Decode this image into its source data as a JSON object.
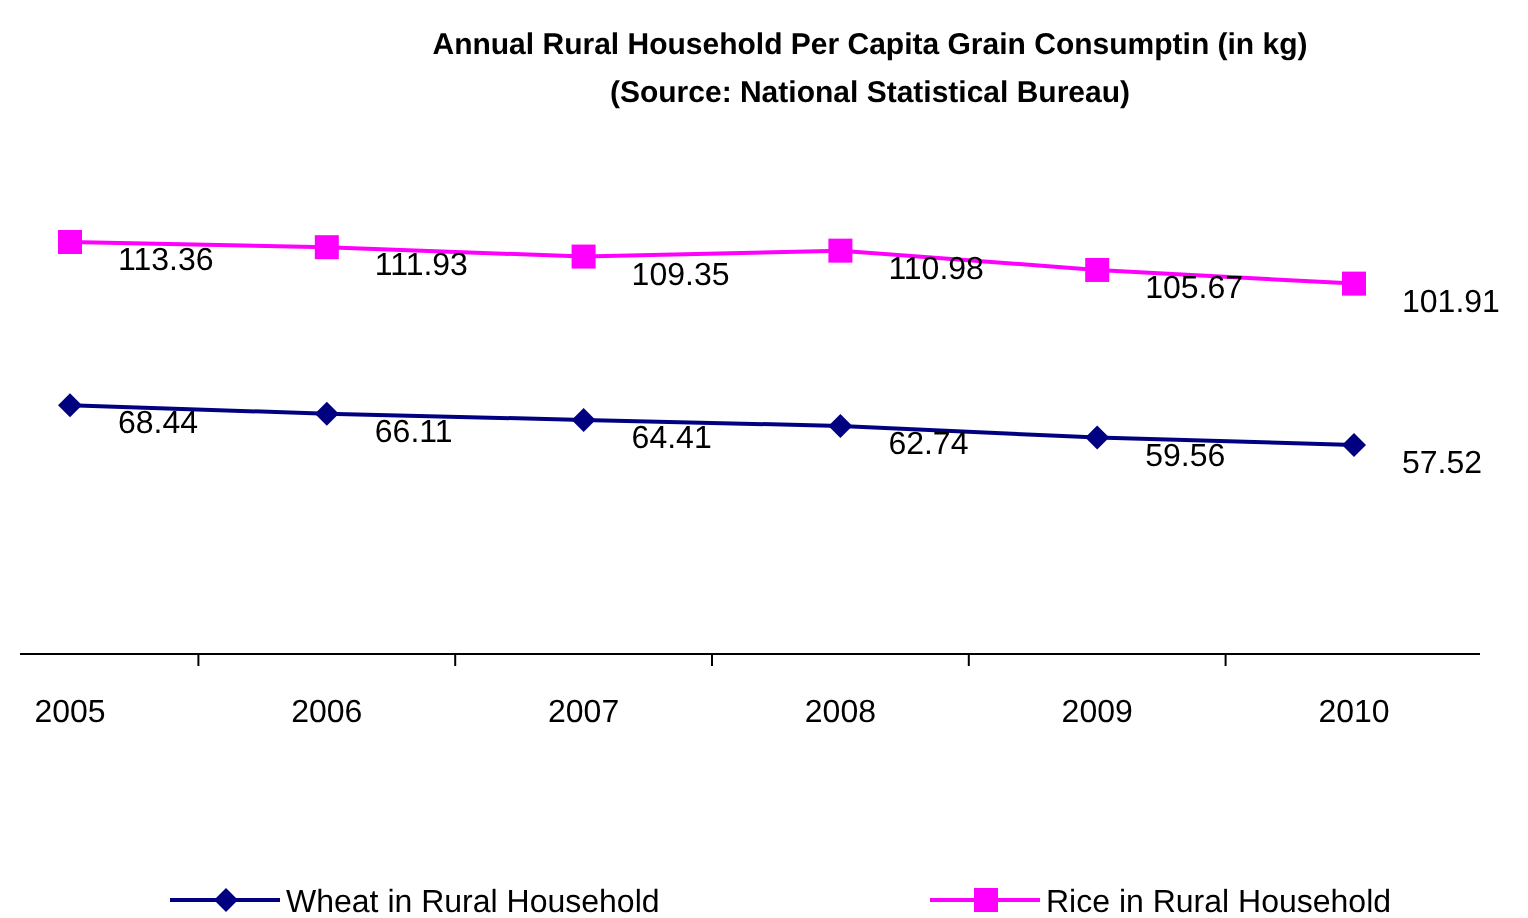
{
  "chart_data": {
    "type": "line",
    "title": "Annual Rural Household Per Capita Grain Consumptin  (in kg)",
    "annotations": [
      "(Source: National Statistical Bureau)"
    ],
    "categories": [
      "2005",
      "2006",
      "2007",
      "2008",
      "2009",
      "2010"
    ],
    "series": [
      {
        "name": "Wheat in Rural Household",
        "color": "#000080",
        "marker": "diamond",
        "values": [
          68.44,
          66.11,
          64.41,
          62.74,
          59.56,
          57.52
        ]
      },
      {
        "name": "Rice in Rural Household",
        "color": "#ff00ff",
        "marker": "square",
        "values": [
          113.36,
          111.93,
          109.35,
          110.98,
          105.67,
          101.91
        ]
      }
    ],
    "data_labels": true,
    "legend": "bottom"
  }
}
